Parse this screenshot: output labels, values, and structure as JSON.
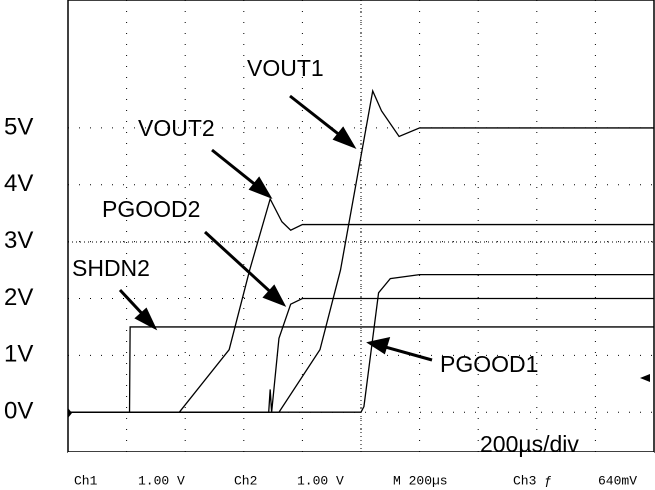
{
  "chart_data": {
    "type": "line",
    "ylim": [
      -0.7,
      7.25
    ],
    "yticks": [
      {
        "value": 0,
        "label": "0V"
      },
      {
        "value": 1,
        "label": "1V"
      },
      {
        "value": 2,
        "label": "2V"
      },
      {
        "value": 3,
        "label": "3V"
      },
      {
        "value": 4,
        "label": "4V"
      },
      {
        "value": 5,
        "label": "5V"
      }
    ],
    "xlim": [
      0,
      2000
    ],
    "xticks": [
      0,
      200,
      400,
      600,
      800,
      1000,
      1200,
      1400,
      1600,
      1800,
      2000
    ],
    "grid": true,
    "series": [
      {
        "name": "SHDN2",
        "color": "#000000",
        "x": [
          0,
          210,
          212,
          2000
        ],
        "values": [
          0,
          0,
          1.5,
          1.5
        ]
      },
      {
        "name": "VOUT2",
        "color": "#000000",
        "x": [
          0,
          380,
          550,
          620,
          690,
          730,
          760,
          800,
          1000,
          2000
        ],
        "values": [
          0,
          0,
          1.1,
          2.5,
          3.75,
          3.35,
          3.2,
          3.3,
          3.3,
          3.3
        ]
      },
      {
        "name": "PGOOD2",
        "color": "#000000",
        "x": [
          0,
          685,
          690,
          695,
          720,
          760,
          800,
          2000
        ],
        "values": [
          0,
          0,
          0.4,
          0,
          1.3,
          1.9,
          2.0,
          2.0
        ]
      },
      {
        "name": "VOUT1",
        "color": "#000000",
        "x": [
          0,
          720,
          860,
          930,
          1040,
          1070,
          1130,
          1200,
          2000
        ],
        "values": [
          0,
          0,
          1.1,
          2.5,
          5.65,
          5.3,
          4.85,
          5.0,
          5.0
        ]
      },
      {
        "name": "PGOOD1",
        "color": "#000000",
        "x": [
          0,
          1000,
          1010,
          1060,
          1100,
          1200,
          2000
        ],
        "values": [
          0,
          0,
          0.1,
          2.1,
          2.35,
          2.42,
          2.42
        ]
      }
    ],
    "annotations": [
      "200µs/div"
    ],
    "status_bar": [
      "Ch1",
      "1.00 V",
      "Ch2",
      "1.00 V",
      "M 200µs",
      "Ch3 ƒ",
      "640mV"
    ]
  }
}
